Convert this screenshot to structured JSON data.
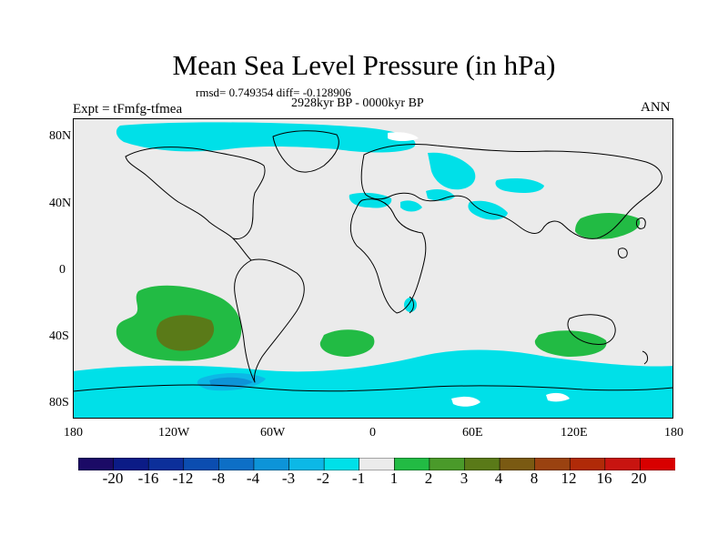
{
  "title": "Mean Sea Level Pressure (in hPa)",
  "stats": "rmsd= 0.749354 diff= -0.128906",
  "period": "2928kyr BP - 0000kyr BP",
  "experiment": "Expt = tFmfg-tfmea",
  "season": "ANN",
  "lat_labels": [
    "80N",
    "40N",
    "0",
    "40S",
    "80S"
  ],
  "lon_labels": [
    "180",
    "120W",
    "60W",
    "0",
    "60E",
    "120E",
    "180"
  ],
  "colorbar": {
    "labels": [
      "-20",
      "-16",
      "-12",
      "-8",
      "-4",
      "-3",
      "-2",
      "-1",
      "1",
      "2",
      "3",
      "4",
      "8",
      "12",
      "16",
      "20"
    ],
    "colors": [
      "#1b0a66",
      "#0b1b86",
      "#0c2f9a",
      "#0b4db0",
      "#0d6fc6",
      "#0d94d8",
      "#0cb8e6",
      "#00e0e8",
      "#ebebeb",
      "#22bb44",
      "#4a9a2a",
      "#5a7a18",
      "#7a5a12",
      "#9a4210",
      "#b02a08",
      "#c81410",
      "#d80000"
    ]
  },
  "colors": {
    "land_neutral": "#ebebeb",
    "negative_1_2": "#00e0e8",
    "negative_2_3": "#0cb8e6",
    "negative_3_4": "#0d94d8",
    "positive_1_2": "#22bb44",
    "positive_2_3": "#4a9a2a",
    "positive_3_4": "#5a7a18"
  }
}
